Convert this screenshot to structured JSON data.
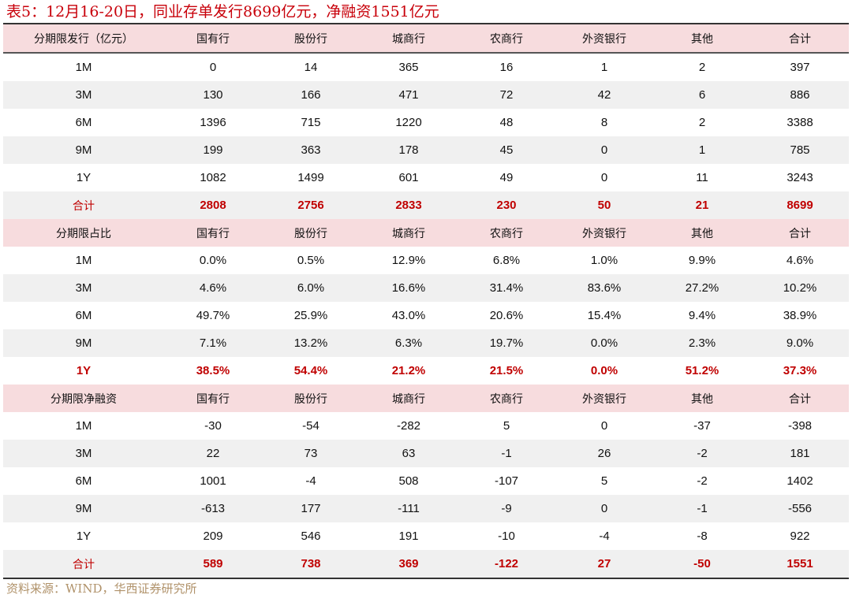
{
  "title": "表5：12月16-20日，同业存单发行8699亿元，净融资1551亿元",
  "columns": [
    "国有行",
    "股份行",
    "城商行",
    "农商行",
    "外资银行",
    "其他",
    "合计"
  ],
  "sections": [
    {
      "header": "分期限发行（亿元）",
      "rows": [
        {
          "label": "1M",
          "values": [
            "0",
            "14",
            "365",
            "16",
            "1",
            "2",
            "397"
          ]
        },
        {
          "label": "3M",
          "values": [
            "130",
            "166",
            "471",
            "72",
            "42",
            "6",
            "886"
          ]
        },
        {
          "label": "6M",
          "values": [
            "1396",
            "715",
            "1220",
            "48",
            "8",
            "2",
            "3388"
          ]
        },
        {
          "label": "9M",
          "values": [
            "199",
            "363",
            "178",
            "45",
            "0",
            "1",
            "785"
          ]
        },
        {
          "label": "1Y",
          "values": [
            "1082",
            "1499",
            "601",
            "49",
            "0",
            "11",
            "3243"
          ]
        }
      ],
      "total": {
        "label": "合计",
        "values": [
          "2808",
          "2756",
          "2833",
          "230",
          "50",
          "21",
          "8699"
        ]
      }
    },
    {
      "header": "分期限占比",
      "rows": [
        {
          "label": "1M",
          "values": [
            "0.0%",
            "0.5%",
            "12.9%",
            "6.8%",
            "1.0%",
            "9.9%",
            "4.6%"
          ]
        },
        {
          "label": "3M",
          "values": [
            "4.6%",
            "6.0%",
            "16.6%",
            "31.4%",
            "83.6%",
            "27.2%",
            "10.2%"
          ]
        },
        {
          "label": "6M",
          "values": [
            "49.7%",
            "25.9%",
            "43.0%",
            "20.6%",
            "15.4%",
            "9.4%",
            "38.9%"
          ]
        },
        {
          "label": "9M",
          "values": [
            "7.1%",
            "13.2%",
            "6.3%",
            "19.7%",
            "0.0%",
            "2.3%",
            "9.0%"
          ]
        },
        {
          "label": "1Y",
          "values": [
            "38.5%",
            "54.4%",
            "21.2%",
            "21.5%",
            "0.0%",
            "51.2%",
            "37.3%"
          ],
          "highlight": true
        }
      ]
    },
    {
      "header": "分期限净融资",
      "rows": [
        {
          "label": "1M",
          "values": [
            "-30",
            "-54",
            "-282",
            "5",
            "0",
            "-37",
            "-398"
          ]
        },
        {
          "label": "3M",
          "values": [
            "22",
            "73",
            "63",
            "-1",
            "26",
            "-2",
            "181"
          ]
        },
        {
          "label": "6M",
          "values": [
            "1001",
            "-4",
            "508",
            "-107",
            "5",
            "-2",
            "1402"
          ]
        },
        {
          "label": "9M",
          "values": [
            "-613",
            "177",
            "-111",
            "-9",
            "0",
            "-1",
            "-556"
          ]
        },
        {
          "label": "1Y",
          "values": [
            "209",
            "546",
            "191",
            "-10",
            "-4",
            "-8",
            "922"
          ]
        }
      ],
      "total": {
        "label": "合计",
        "values": [
          "589",
          "738",
          "369",
          "-122",
          "27",
          "-50",
          "1551"
        ]
      }
    }
  ],
  "source": "资料来源：WIND，华西证券研究所",
  "colors": {
    "accent_red": "#c00000",
    "header_bg": "#f7dcde",
    "stripe_bg": "#f0f0f0",
    "source_text": "#b0926a"
  }
}
